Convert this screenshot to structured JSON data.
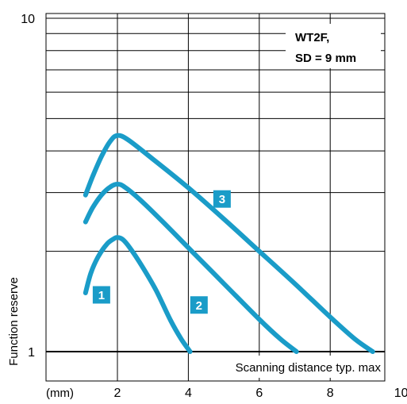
{
  "chart_data": {
    "type": "line",
    "title": "",
    "xlabel": "Scanning distance typ. max",
    "ylabel": "Function reserve",
    "x_unit_label": "(mm)",
    "x_ticks": [
      2,
      4,
      6,
      8,
      10
    ],
    "xlim": [
      0.5,
      10
    ],
    "y_scale": "log",
    "ylim": [
      1,
      10
    ],
    "y_tick_labels": [
      "1",
      "10"
    ],
    "grid": true,
    "annotation_lines": [
      "WT2F,",
      "SD = 9 mm"
    ],
    "line_color": "#1a9cc8",
    "marker_color": "#1a9cc8",
    "series": [
      {
        "marker_label": "1",
        "marker_at": [
          1.55,
          1.48
        ],
        "x": [
          1.1,
          1.25,
          1.45,
          1.7,
          1.9,
          2.0,
          2.15,
          2.35,
          2.7,
          3.1,
          3.5,
          3.8,
          4.05
        ],
        "y": [
          1.5,
          1.72,
          1.92,
          2.1,
          2.18,
          2.2,
          2.17,
          2.05,
          1.8,
          1.52,
          1.24,
          1.09,
          1.0
        ]
      },
      {
        "marker_label": "2",
        "marker_at": [
          4.3,
          1.38
        ],
        "x": [
          1.1,
          1.3,
          1.55,
          1.8,
          2.0,
          2.2,
          2.6,
          3.2,
          4.0,
          5.0,
          6.0,
          6.6,
          7.05
        ],
        "y": [
          2.45,
          2.7,
          2.95,
          3.12,
          3.18,
          3.12,
          2.88,
          2.5,
          2.05,
          1.6,
          1.25,
          1.09,
          1.0
        ]
      },
      {
        "marker_label": "3",
        "marker_at": [
          4.95,
          2.87
        ],
        "x": [
          1.1,
          1.3,
          1.55,
          1.8,
          2.0,
          2.3,
          3.0,
          4.0,
          5.0,
          6.0,
          7.0,
          8.0,
          8.7,
          9.2
        ],
        "y": [
          2.95,
          3.35,
          3.85,
          4.28,
          4.45,
          4.32,
          3.78,
          3.1,
          2.5,
          2.0,
          1.6,
          1.27,
          1.09,
          1.0
        ]
      }
    ]
  }
}
